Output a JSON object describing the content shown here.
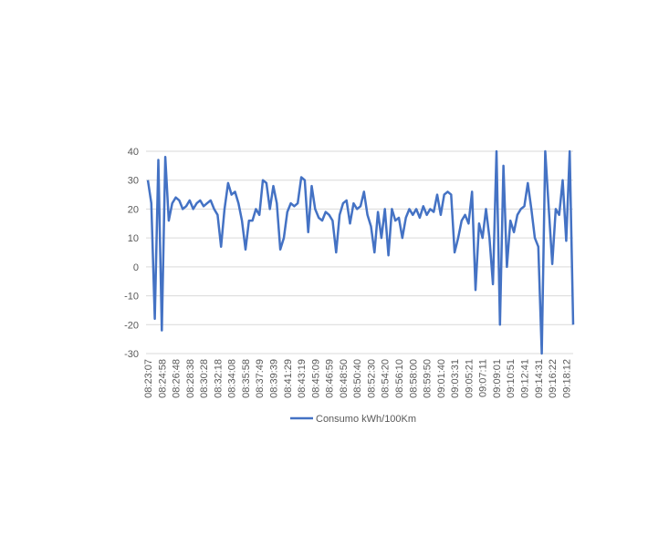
{
  "chart_data": {
    "type": "line",
    "categories": [
      "08:23:07",
      null,
      null,
      null,
      "08:24:58",
      null,
      null,
      null,
      "08:26:48",
      null,
      null,
      null,
      "08:28:38",
      null,
      null,
      null,
      "08:30:28",
      null,
      null,
      null,
      "08:32:18",
      null,
      null,
      null,
      "08:34:08",
      null,
      null,
      null,
      "08:35:58",
      null,
      null,
      null,
      "08:37:49",
      null,
      null,
      null,
      "08:39:39",
      null,
      null,
      null,
      "08:41:29",
      null,
      null,
      null,
      "08:43:19",
      null,
      null,
      null,
      "08:45:09",
      null,
      null,
      null,
      "08:46:59",
      null,
      null,
      null,
      "08:48:50",
      null,
      null,
      null,
      "08:50:40",
      null,
      null,
      null,
      "08:52:30",
      null,
      null,
      null,
      "08:54:20",
      null,
      null,
      null,
      "08:56:10",
      null,
      null,
      null,
      "08:58:00",
      null,
      null,
      null,
      "08:59:50",
      null,
      null,
      null,
      "09:01:40",
      null,
      null,
      null,
      "09:03:31",
      null,
      null,
      null,
      "09:05:21",
      null,
      null,
      null,
      "09:07:11",
      null,
      null,
      null,
      "09:09:01",
      null,
      null,
      null,
      "09:10:51",
      null,
      null,
      null,
      "09:12:41",
      null,
      null,
      null,
      "09:14:31",
      null,
      null,
      null,
      "09:16:22",
      null,
      null,
      null,
      "09:18:12",
      null,
      null
    ],
    "series": [
      {
        "name": "Consumo kWh/100Km",
        "color": "#4472c4",
        "values": [
          30,
          22,
          -18,
          37,
          -22,
          38,
          16,
          22,
          24,
          23,
          20,
          21,
          23,
          20,
          22,
          23,
          21,
          22,
          23,
          20,
          18,
          7,
          20,
          29,
          25,
          26,
          22,
          16,
          6,
          16,
          16,
          20,
          18,
          30,
          29,
          20,
          28,
          22,
          6,
          10,
          19,
          22,
          21,
          22,
          31,
          30,
          12,
          28,
          20,
          17,
          16,
          19,
          18,
          16,
          5,
          18,
          22,
          23,
          15,
          22,
          20,
          21,
          26,
          18,
          14,
          5,
          19,
          10,
          20,
          4,
          20,
          16,
          17,
          10,
          17,
          20,
          18,
          20,
          17,
          21,
          18,
          20,
          19,
          25,
          18,
          25,
          26,
          25,
          5,
          10,
          16,
          18,
          15,
          26,
          -8,
          15,
          10,
          20,
          10,
          -6,
          40,
          -20,
          35,
          0,
          16,
          12,
          18,
          20,
          21,
          29,
          20,
          10,
          7,
          -30,
          40,
          20,
          1,
          20,
          18,
          30,
          9,
          40,
          -20
        ]
      }
    ],
    "ylim": [
      -30,
      40
    ],
    "yticks": [
      -30,
      -20,
      -10,
      0,
      10,
      20,
      30,
      40
    ],
    "grid": true,
    "legend": "bottom"
  }
}
